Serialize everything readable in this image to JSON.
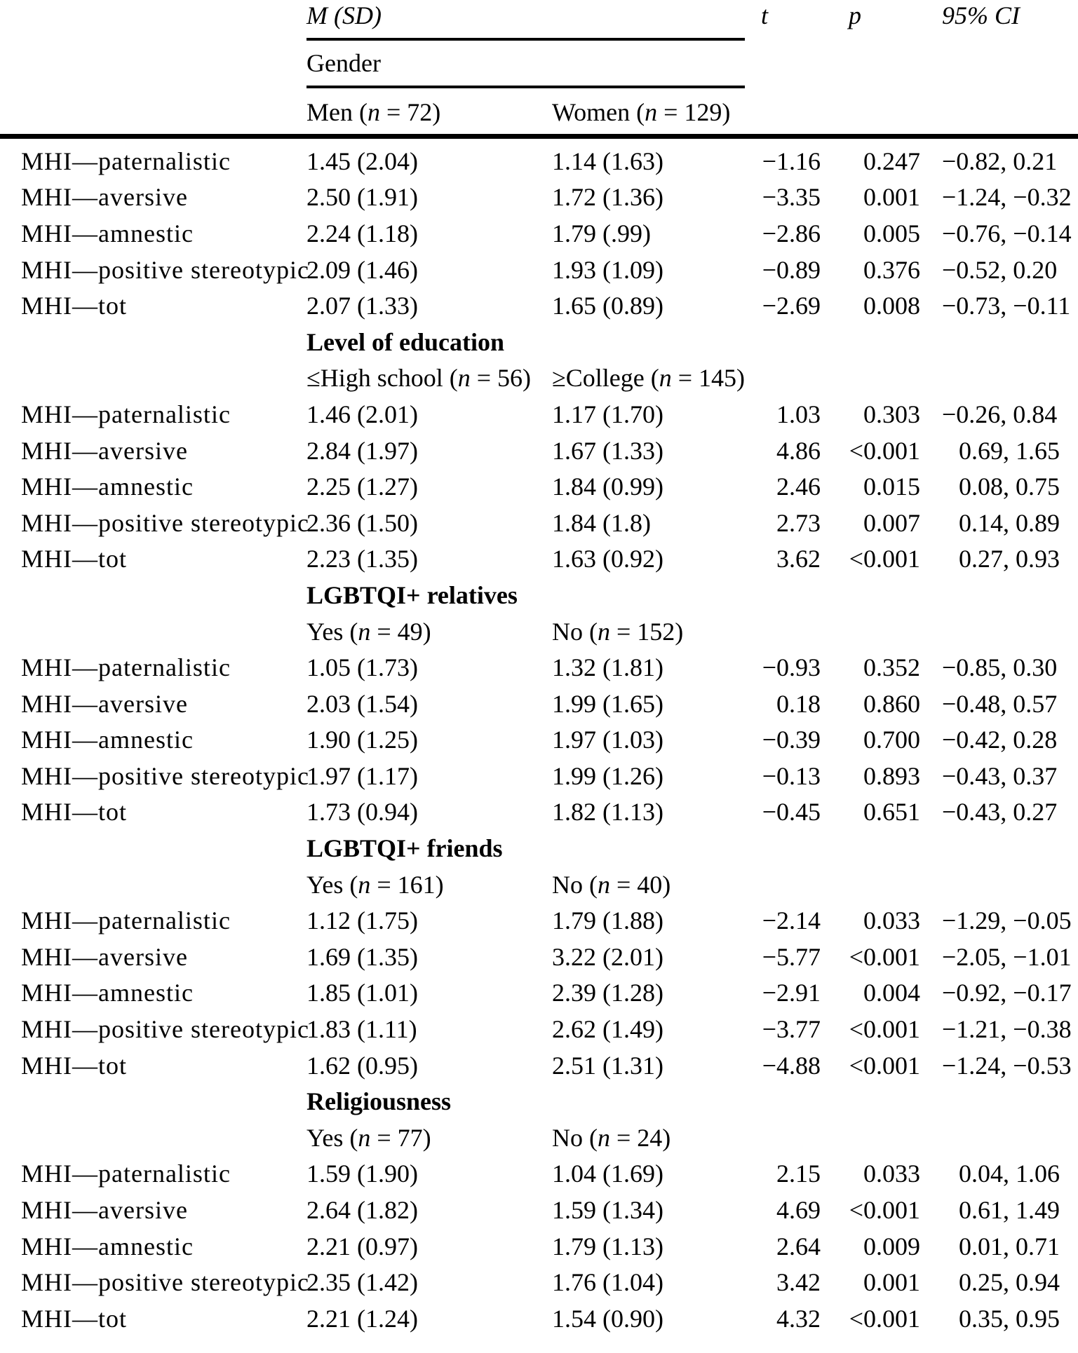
{
  "table": {
    "header": {
      "m_sd": "M (SD)",
      "t": "t",
      "p": "p",
      "ci": "95% CI"
    },
    "sections": [
      {
        "name": "Gender",
        "group1": "Men (n = 72)",
        "group2": "Women (n = 129)",
        "rows": [
          {
            "label": "MHI—paternalistic",
            "g1": "1.45 (2.04)",
            "g2": "1.14 (1.63)",
            "t": "−1.16",
            "p": "0.247",
            "ci": "−0.82, 0.21"
          },
          {
            "label": "MHI—aversive",
            "g1": "2.50 (1.91)",
            "g2": "1.72 (1.36)",
            "t": "−3.35",
            "p": "0.001",
            "ci": "−1.24, −0.32"
          },
          {
            "label": "MHI—amnestic",
            "g1": "2.24 (1.18)",
            "g2": "1.79 (.99)",
            "t": "−2.86",
            "p": "0.005",
            "ci": "−0.76, −0.14"
          },
          {
            "label": "MHI—positive stereotypic",
            "g1": "2.09 (1.46)",
            "g2": "1.93 (1.09)",
            "t": "−0.89",
            "p": "0.376",
            "ci": "−0.52, 0.20"
          },
          {
            "label": "MHI—tot",
            "g1": "2.07 (1.33)",
            "g2": "1.65 (0.89)",
            "t": "−2.69",
            "p": "0.008",
            "ci": "−0.73, −0.11"
          }
        ]
      },
      {
        "name": "Level of education",
        "group1": "≤High school (n = 56)",
        "group2": "≥College (n = 145)",
        "rows": [
          {
            "label": "MHI—paternalistic",
            "g1": "1.46 (2.01)",
            "g2": "1.17 (1.70)",
            "t": "1.03",
            "p": "0.303",
            "ci": "−0.26, 0.84"
          },
          {
            "label": "MHI—aversive",
            "g1": "2.84 (1.97)",
            "g2": "1.67 (1.33)",
            "t": "4.86",
            "p": "<0.001",
            "ci": "0.69, 1.65"
          },
          {
            "label": "MHI—amnestic",
            "g1": "2.25 (1.27)",
            "g2": "1.84 (0.99)",
            "t": "2.46",
            "p": "0.015",
            "ci": "0.08, 0.75"
          },
          {
            "label": "MHI—positive stereotypic",
            "g1": "2.36 (1.50)",
            "g2": "1.84 (1.8)",
            "t": "2.73",
            "p": "0.007",
            "ci": "0.14, 0.89"
          },
          {
            "label": "MHI—tot",
            "g1": "2.23 (1.35)",
            "g2": "1.63 (0.92)",
            "t": "3.62",
            "p": "<0.001",
            "ci": "0.27, 0.93"
          }
        ]
      },
      {
        "name": "LGBTQI+ relatives",
        "group1": "Yes (n = 49)",
        "group2": "No (n = 152)",
        "rows": [
          {
            "label": "MHI—paternalistic",
            "g1": "1.05 (1.73)",
            "g2": "1.32 (1.81)",
            "t": "−0.93",
            "p": "0.352",
            "ci": "−0.85, 0.30"
          },
          {
            "label": "MHI—aversive",
            "g1": "2.03 (1.54)",
            "g2": "1.99 (1.65)",
            "t": "0.18",
            "p": "0.860",
            "ci": "−0.48, 0.57"
          },
          {
            "label": "MHI—amnestic",
            "g1": "1.90 (1.25)",
            "g2": "1.97 (1.03)",
            "t": "−0.39",
            "p": "0.700",
            "ci": "−0.42, 0.28"
          },
          {
            "label": "MHI—positive stereotypic",
            "g1": "1.97 (1.17)",
            "g2": "1.99 (1.26)",
            "t": "−0.13",
            "p": "0.893",
            "ci": "−0.43, 0.37"
          },
          {
            "label": "MHI—tot",
            "g1": "1.73 (0.94)",
            "g2": "1.82 (1.13)",
            "t": "−0.45",
            "p": "0.651",
            "ci": "−0.43, 0.27"
          }
        ]
      },
      {
        "name": "LGBTQI+ friends",
        "group1": "Yes (n = 161)",
        "group2": "No (n = 40)",
        "rows": [
          {
            "label": "MHI—paternalistic",
            "g1": "1.12 (1.75)",
            "g2": "1.79 (1.88)",
            "t": "−2.14",
            "p": "0.033",
            "ci": "−1.29, −0.05"
          },
          {
            "label": "MHI—aversive",
            "g1": "1.69 (1.35)",
            "g2": "3.22 (2.01)",
            "t": "−5.77",
            "p": "<0.001",
            "ci": "−2.05, −1.01"
          },
          {
            "label": "MHI—amnestic",
            "g1": "1.85 (1.01)",
            "g2": "2.39 (1.28)",
            "t": "−2.91",
            "p": "0.004",
            "ci": "−0.92, −0.17"
          },
          {
            "label": "MHI—positive stereotypic",
            "g1": "1.83 (1.11)",
            "g2": "2.62 (1.49)",
            "t": "−3.77",
            "p": "<0.001",
            "ci": "−1.21, −0.38"
          },
          {
            "label": "MHI—tot",
            "g1": "1.62 (0.95)",
            "g2": "2.51 (1.31)",
            "t": "−4.88",
            "p": "<0.001",
            "ci": "−1.24, −0.53"
          }
        ]
      },
      {
        "name": "Religiousness",
        "group1": "Yes (n = 77)",
        "group2": "No (n = 24)",
        "rows": [
          {
            "label": "MHI—paternalistic",
            "g1": "1.59 (1.90)",
            "g2": "1.04 (1.69)",
            "t": "2.15",
            "p": "0.033",
            "ci": "0.04, 1.06"
          },
          {
            "label": "MHI—aversive",
            "g1": "2.64 (1.82)",
            "g2": "1.59 (1.34)",
            "t": "4.69",
            "p": "<0.001",
            "ci": "0.61, 1.49"
          },
          {
            "label": "MHI—amnestic",
            "g1": "2.21 (0.97)",
            "g2": "1.79 (1.13)",
            "t": "2.64",
            "p": "0.009",
            "ci": "0.01, 0.71"
          },
          {
            "label": "MHI—positive stereotypic",
            "g1": "2.35 (1.42)",
            "g2": "1.76 (1.04)",
            "t": "3.42",
            "p": "0.001",
            "ci": "0.25, 0.94"
          },
          {
            "label": "MHI—tot",
            "g1": "2.21 (1.24)",
            "g2": "1.54 (0.90)",
            "t": "4.32",
            "p": "<0.001",
            "ci": "0.35, 0.95"
          }
        ]
      }
    ]
  }
}
